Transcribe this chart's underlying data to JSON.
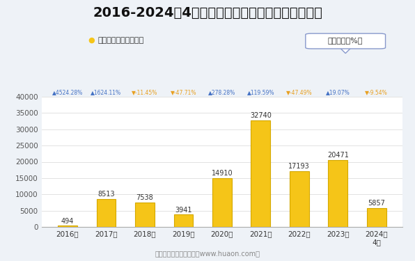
{
  "title": "2016-2024年4月郑州商品交易所锰硅期货成交金额",
  "legend_label": "期货成交金额（亿元）",
  "box_label": "同比增速（%）",
  "years": [
    "2016年",
    "2017年",
    "2018年",
    "2019年",
    "2020年",
    "2021年",
    "2022年",
    "2023年",
    "2024年\n4月"
  ],
  "values": [
    494,
    8513,
    7538,
    3941,
    14910,
    32740,
    17193,
    20471,
    5857
  ],
  "growth_labels": [
    "▲4524.28%",
    "▲1624.11%",
    "▼-11.45%",
    "▼-47.71%",
    "▲278.28%",
    "▲119.59%",
    "▼-47.49%",
    "▲19.07%",
    "▼-9.54%"
  ],
  "growth_up_color": "#4472c4",
  "growth_down_color": "#e8a020",
  "growth_is_up": [
    true,
    true,
    false,
    false,
    true,
    true,
    false,
    true,
    false
  ],
  "bar_color": "#f5c518",
  "bar_edge_color": "#d4a800",
  "background_color": "#eef2f7",
  "plot_bg_color": "#ffffff",
  "ylim": [
    0,
    40000
  ],
  "yticks": [
    0,
    5000,
    10000,
    15000,
    20000,
    25000,
    30000,
    35000,
    40000
  ],
  "footer": "制图：华经产业研究院（www.huaon.com）",
  "title_fontsize": 14,
  "bar_width": 0.5
}
